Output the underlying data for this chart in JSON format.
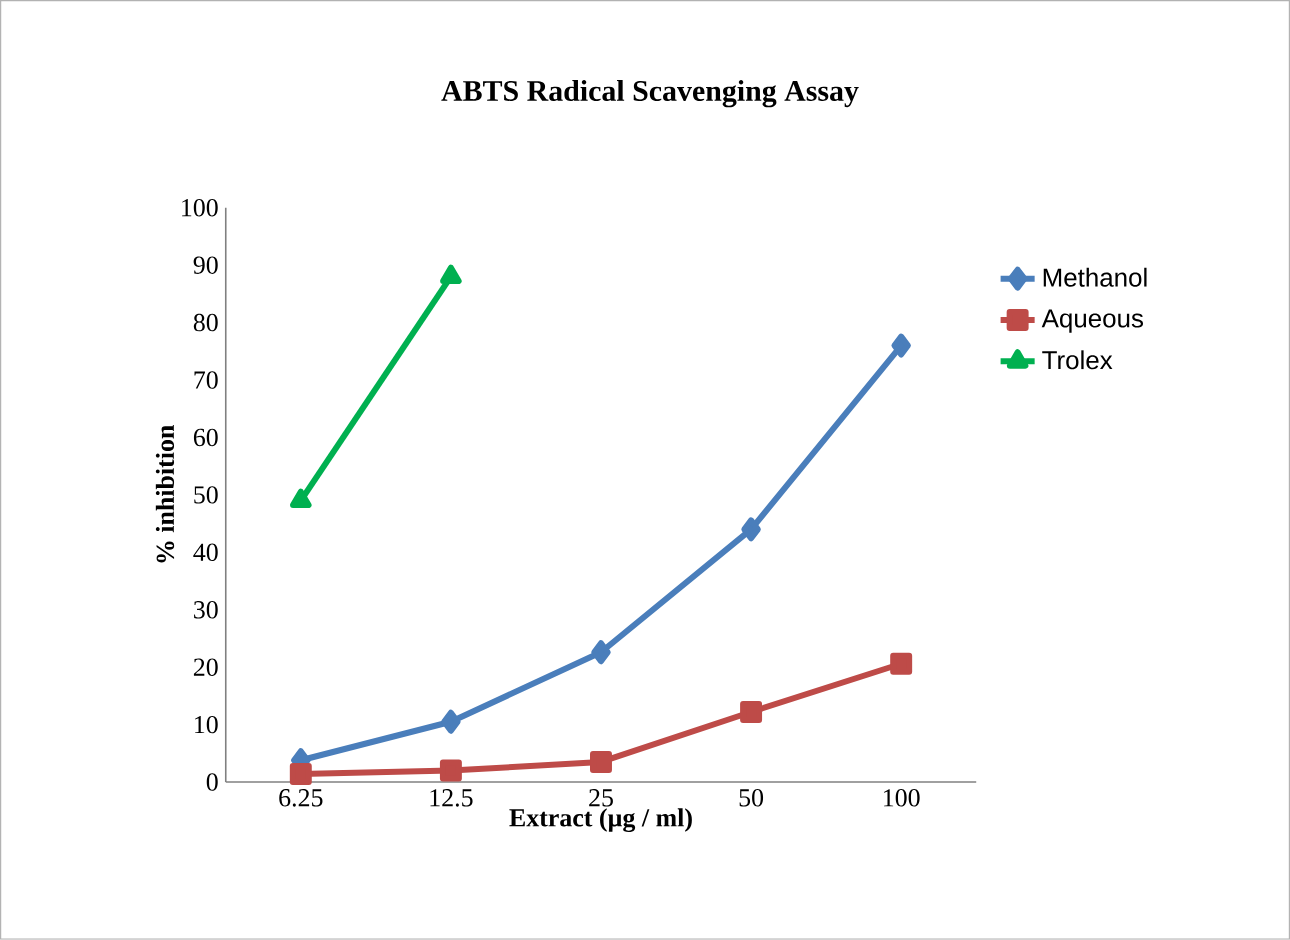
{
  "chart_data": {
    "type": "line",
    "title": "ABTS  Radical Scavenging Assay",
    "xlabel": "Extract (µg / ml)",
    "ylabel": "% inhibition",
    "categories": [
      "6.25",
      "12.5",
      "25",
      "50",
      "100"
    ],
    "ylim": [
      0,
      100
    ],
    "yticks": [
      0,
      10,
      20,
      30,
      40,
      50,
      60,
      70,
      80,
      90,
      100
    ],
    "grid": false,
    "legend": "right",
    "line_style": "solid",
    "series": [
      {
        "name": "Methanol",
        "color": "#4a7ebb",
        "marker": "diamond",
        "values": [
          3.8,
          10.5,
          22.6,
          44,
          76
        ]
      },
      {
        "name": "Aqueous",
        "color": "#be4b48",
        "marker": "square",
        "values": [
          1.4,
          2,
          3.5,
          12.2,
          20.6
        ]
      },
      {
        "name": "Trolex",
        "color": "#00b050",
        "marker": "triangle",
        "values": [
          49,
          88,
          null,
          null,
          null
        ]
      }
    ]
  }
}
